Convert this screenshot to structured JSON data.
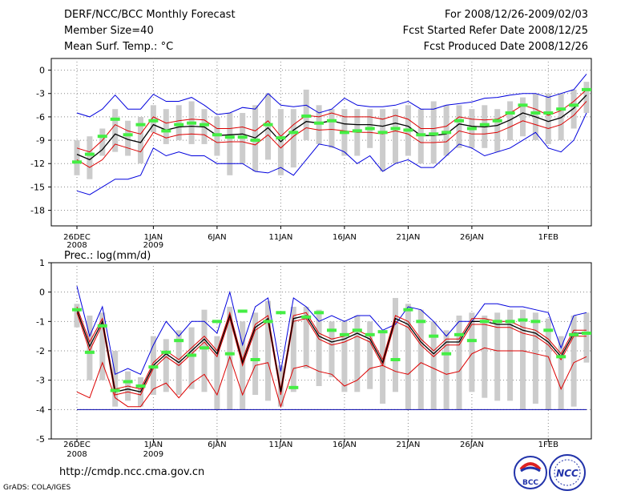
{
  "header": {
    "title": "DERF/NCC/BCC Monthly Forecast",
    "member_size": "Member Size=40",
    "variable": "Mean Surf. Temp.: °C",
    "period": "For 2008/12/26-2009/02/03",
    "fcst_started": "Fcst Started Refer Date 2008/12/25",
    "fcst_produced": "Fcst Produced Date 2008/12/26"
  },
  "footer": {
    "url": "http://cmdp.ncc.cma.gov.cn",
    "credit": "GrADS: COLA/IGES",
    "logo_bcc": "BCC",
    "logo_ncc": "NCC"
  },
  "chart_data": [
    {
      "id": "temperature",
      "type": "line",
      "title": "Mean Surf. Temp.: °C",
      "ylim": [
        -20,
        1.5
      ],
      "yticks": [
        0,
        -3,
        -6,
        -9,
        -12,
        -15,
        -18
      ],
      "ytick_labels": [
        "0",
        "-3",
        "-6",
        "-9",
        "-12",
        "-15",
        "-18"
      ],
      "x_days": 40,
      "xticks": [
        {
          "day": 0,
          "label": "26DEC",
          "sub": "2008"
        },
        {
          "day": 6,
          "label": "1JAN",
          "sub": "2009"
        },
        {
          "day": 11,
          "label": "6JAN",
          "sub": ""
        },
        {
          "day": 16,
          "label": "11JAN",
          "sub": ""
        },
        {
          "day": 21,
          "label": "16JAN",
          "sub": ""
        },
        {
          "day": 26,
          "label": "21JAN",
          "sub": ""
        },
        {
          "day": 31,
          "label": "26JAN",
          "sub": ""
        },
        {
          "day": 37,
          "label": "1FEB",
          "sub": ""
        }
      ],
      "series": [
        {
          "name": "max",
          "color": "#0000dd",
          "values": [
            -5.5,
            -6,
            -5,
            -3.2,
            -5,
            -5,
            -3.1,
            -4,
            -4,
            -3.5,
            -4.5,
            -5.7,
            -5.5,
            -4.8,
            -5,
            -3,
            -4.5,
            -4.7,
            -4.5,
            -5.5,
            -5,
            -3.6,
            -4.5,
            -4.7,
            -4.7,
            -4.5,
            -4,
            -5,
            -5,
            -4.5,
            -4.3,
            -4.1,
            -3.6,
            -3.5,
            -3.2,
            -3,
            -3,
            -3.5,
            -3,
            -2.5,
            -0.5
          ]
        },
        {
          "name": "min",
          "color": "#0000dd",
          "values": [
            -15.5,
            -16,
            -15,
            -14,
            -14,
            -13.5,
            -10,
            -11,
            -10.5,
            -11,
            -11,
            -12,
            -12,
            -12,
            -13,
            -13.2,
            -12.5,
            -13.5,
            -11.5,
            -9.5,
            -9.8,
            -10.5,
            -12,
            -11,
            -13,
            -12,
            -11.5,
            -12.5,
            -12.5,
            -11,
            -9.5,
            -10,
            -11,
            -10.5,
            -10,
            -9,
            -8,
            -10,
            -10.5,
            -9,
            -5.5
          ]
        },
        {
          "name": "upper",
          "color": "#dd0000",
          "values": [
            -10,
            -10.5,
            -9,
            -7,
            -7.8,
            -8.2,
            -6,
            -6.8,
            -6.5,
            -6.3,
            -6.4,
            -7.5,
            -7.5,
            -7.3,
            -7.8,
            -6.5,
            -8.5,
            -7,
            -5.8,
            -6,
            -5.5,
            -6,
            -6,
            -6,
            -6.3,
            -5.8,
            -6.3,
            -7.5,
            -7.5,
            -7.2,
            -6,
            -6.3,
            -6.4,
            -6.3,
            -5.5,
            -4.5,
            -5,
            -5.8,
            -5.2,
            -4,
            -2.5
          ]
        },
        {
          "name": "lower",
          "color": "#dd0000",
          "values": [
            -11.5,
            -12.5,
            -11.5,
            -9.5,
            -10,
            -10.5,
            -8,
            -8.7,
            -8.3,
            -8.2,
            -8.3,
            -9.3,
            -9.2,
            -9.2,
            -9.6,
            -8.3,
            -10,
            -8.5,
            -7.4,
            -7.7,
            -7.6,
            -7.8,
            -8,
            -8,
            -8.2,
            -7.8,
            -8.2,
            -9.3,
            -9.3,
            -9.2,
            -7.8,
            -8.2,
            -8.2,
            -8,
            -7.3,
            -6.5,
            -7,
            -7.5,
            -7,
            -5.8,
            -4
          ]
        },
        {
          "name": "mean",
          "color": "#000000",
          "values": [
            -10.8,
            -11.5,
            -10.2,
            -8.2,
            -8.9,
            -9.3,
            -7,
            -7.7,
            -7.3,
            -7.2,
            -7.3,
            -8.4,
            -8.3,
            -8.2,
            -8.7,
            -7.4,
            -9.2,
            -7.7,
            -6.6,
            -6.8,
            -6.5,
            -6.9,
            -7,
            -7,
            -7.2,
            -6.8,
            -7.2,
            -8.4,
            -8.4,
            -8.2,
            -6.9,
            -7.2,
            -7.3,
            -7.1,
            -6.4,
            -5.5,
            -6,
            -6.6,
            -6.1,
            -4.9,
            -3.2
          ]
        }
      ],
      "boxes": [
        [
          -9,
          -13.5
        ],
        [
          -8.5,
          -14
        ],
        [
          -7.5,
          -11
        ],
        [
          -5,
          -10.5
        ],
        [
          -6.5,
          -11
        ],
        [
          -6,
          -12
        ],
        [
          -4.5,
          -8
        ],
        [
          -5,
          -9.5
        ],
        [
          -4.5,
          -9
        ],
        [
          -4,
          -9.5
        ],
        [
          -5,
          -9.5
        ],
        [
          -6,
          -11
        ],
        [
          -5.5,
          -13.5
        ],
        [
          -5.5,
          -12
        ],
        [
          -4.5,
          -13
        ],
        [
          -3,
          -11.5
        ],
        [
          -5,
          -13.5
        ],
        [
          -5,
          -12.5
        ],
        [
          -2.5,
          -9
        ],
        [
          -4.5,
          -9.5
        ],
        [
          -5,
          -10
        ],
        [
          -5,
          -11
        ],
        [
          -5,
          -11
        ],
        [
          -5,
          -10
        ],
        [
          -5,
          -13
        ],
        [
          -5,
          -12
        ],
        [
          -4.5,
          -11
        ],
        [
          -5,
          -12
        ],
        [
          -4,
          -12
        ],
        [
          -4.5,
          -11
        ],
        [
          -4.5,
          -10
        ],
        [
          -5,
          -10
        ],
        [
          -4.5,
          -10
        ],
        [
          -5,
          -10.5
        ],
        [
          -4,
          -9
        ],
        [
          -3.5,
          -8.5
        ],
        [
          -3,
          -9
        ],
        [
          -3,
          -9.5
        ],
        [
          -3,
          -9
        ],
        [
          -2.5,
          -7.5
        ],
        [
          -1.5,
          -5.5
        ]
      ],
      "markers": [
        -11.8,
        -10.8,
        -8.5,
        -6.3,
        -8.3,
        -7,
        -6.5,
        -7.8,
        -7,
        -6.8,
        -7,
        -8.3,
        -8.6,
        -8.6,
        -9,
        -7,
        -8.7,
        -8,
        -5.9,
        -6.8,
        -6.5,
        -8,
        -7.8,
        -7.5,
        -8,
        -7.5,
        -7.7,
        -8.3,
        -8.2,
        -8,
        -6.5,
        -7.5,
        -7,
        -6.5,
        -5.5,
        -4.5,
        -5.5,
        -5.5,
        -5,
        -4.5,
        -2.5
      ]
    },
    {
      "id": "precipitation",
      "type": "line",
      "title": "Prec.: log(mm/d)",
      "ylim": [
        -5,
        1
      ],
      "yticks": [
        1,
        0,
        -1,
        -2,
        -3,
        -4,
        -5
      ],
      "ytick_labels": [
        "1",
        "0",
        "-1",
        "-2",
        "-3",
        "-4",
        "-5"
      ],
      "x_days": 40,
      "xticks": [
        {
          "day": 0,
          "label": "26DEC",
          "sub": "2008"
        },
        {
          "day": 6,
          "label": "1JAN",
          "sub": "2009"
        },
        {
          "day": 11,
          "label": "6JAN",
          "sub": ""
        },
        {
          "day": 16,
          "label": "11JAN",
          "sub": ""
        },
        {
          "day": 21,
          "label": "16JAN",
          "sub": ""
        },
        {
          "day": 26,
          "label": "21JAN",
          "sub": ""
        },
        {
          "day": 31,
          "label": "26JAN",
          "sub": ""
        },
        {
          "day": 37,
          "label": "1FEB",
          "sub": ""
        }
      ],
      "series": [
        {
          "name": "max",
          "color": "#0000dd",
          "values": [
            0.2,
            -1.5,
            -0.5,
            -2.8,
            -2.6,
            -2.8,
            -1.8,
            -1,
            -1.5,
            -1,
            -1,
            -1.4,
            0,
            -1.8,
            -0.5,
            -0.2,
            -2.7,
            -0.2,
            -0.5,
            -1,
            -0.8,
            -1,
            -0.8,
            -0.8,
            -1.3,
            -1.1,
            -0.5,
            -0.6,
            -1,
            -1.5,
            -1,
            -1,
            -0.4,
            -0.4,
            -0.5,
            -0.5,
            -0.6,
            -0.7,
            -1.9,
            -0.8,
            -0.7
          ]
        },
        {
          "name": "min",
          "color": "#dd0000",
          "values": [
            -3.4,
            -3.6,
            -2.4,
            -3.6,
            -3.9,
            -3.9,
            -3.3,
            -3.1,
            -3.6,
            -3.1,
            -2.8,
            -3.5,
            -2.2,
            -3.5,
            -2.5,
            -2.4,
            -3.9,
            -2.6,
            -2.5,
            -2.7,
            -2.8,
            -3.2,
            -3,
            -2.6,
            -2.5,
            -2.7,
            -2.8,
            -2.4,
            -2.6,
            -2.8,
            -2.7,
            -2.1,
            -1.9,
            -2,
            -2,
            -2,
            -2.1,
            -2.2,
            -3.3,
            -2.4,
            -2.2
          ]
        },
        {
          "name": "lower",
          "color": "#dd0000",
          "values": [
            -0.7,
            -2,
            -1.1,
            -3.5,
            -3.4,
            -3.5,
            -2.6,
            -2.2,
            -2.5,
            -2.1,
            -1.7,
            -2.2,
            -0.9,
            -2.5,
            -1.3,
            -1,
            -3.5,
            -1,
            -0.9,
            -1.6,
            -1.8,
            -1.7,
            -1.5,
            -1.7,
            -2.5,
            -1,
            -1.2,
            -1.8,
            -2.2,
            -1.8,
            -1.8,
            -1.1,
            -1.1,
            -1.2,
            -1.2,
            -1.4,
            -1.5,
            -1.8,
            -2.3,
            -1.5,
            -1.5
          ]
        },
        {
          "name": "upper",
          "color": "#dd0000",
          "values": [
            -0.5,
            -1.7,
            -0.9,
            -3.3,
            -3.2,
            -3.3,
            -2.4,
            -2,
            -2.3,
            -1.9,
            -1.5,
            -2,
            -0.7,
            -2.3,
            -1.1,
            -0.8,
            -3.3,
            -0.8,
            -0.7,
            -1.4,
            -1.6,
            -1.5,
            -1.3,
            -1.5,
            -2.3,
            -0.8,
            -1,
            -1.6,
            -2,
            -1.6,
            -1.6,
            -0.9,
            -0.9,
            -1,
            -1,
            -1.2,
            -1.3,
            -1.6,
            -2.1,
            -1.3,
            -1.3
          ]
        },
        {
          "name": "mean",
          "color": "#000000",
          "values": [
            -0.6,
            -1.85,
            -1,
            -3.4,
            -3.3,
            -3.4,
            -2.5,
            -2.1,
            -2.4,
            -2,
            -1.6,
            -2.1,
            -0.8,
            -2.4,
            -1.2,
            -0.9,
            -3.4,
            -0.9,
            -0.8,
            -1.5,
            -1.7,
            -1.6,
            -1.4,
            -1.6,
            -2.4,
            -0.9,
            -1.1,
            -1.7,
            -2.1,
            -1.7,
            -1.7,
            -1,
            -1,
            -1.1,
            -1.1,
            -1.3,
            -1.4,
            -1.7,
            -2.2,
            -1.4,
            -1.4
          ]
        }
      ],
      "floor": -4,
      "boxes": [
        [
          -0.4,
          -1.2
        ],
        [
          -0.8,
          -3
        ],
        [
          -0.7,
          -3
        ],
        [
          -2,
          -3.9
        ],
        [
          -2.7,
          -3.7
        ],
        [
          -2.9,
          -3.9
        ],
        [
          -1.5,
          -3.5
        ],
        [
          -1.6,
          -3.4
        ],
        [
          -1.3,
          -3.5
        ],
        [
          -1.2,
          -3.3
        ],
        [
          -0.6,
          -3.4
        ],
        [
          -1.5,
          -4
        ],
        [
          -0.5,
          -4
        ],
        [
          -1,
          -4
        ],
        [
          -0.7,
          -3.5
        ],
        [
          -0.3,
          -3.7
        ],
        [
          -2.5,
          -3.9
        ],
        [
          -0.5,
          -3.4
        ],
        [
          -0.5,
          -2.6
        ],
        [
          -0.6,
          -3.2
        ],
        [
          -1,
          -2.9
        ],
        [
          -1,
          -3.4
        ],
        [
          -0.8,
          -3.4
        ],
        [
          -1,
          -3.3
        ],
        [
          -1.4,
          -3.8
        ],
        [
          -0.2,
          -3.4
        ],
        [
          -0.4,
          -4
        ],
        [
          -0.6,
          -4
        ],
        [
          -1,
          -4
        ],
        [
          -1.3,
          -4
        ],
        [
          -0.8,
          -4
        ],
        [
          -0.7,
          -3.4
        ],
        [
          -0.8,
          -3.6
        ],
        [
          -0.7,
          -3.7
        ],
        [
          -0.6,
          -3.7
        ],
        [
          -0.6,
          -4
        ],
        [
          -0.7,
          -3.8
        ],
        [
          -0.9,
          -4
        ],
        [
          -1.5,
          -4
        ],
        [
          -0.8,
          -3.9
        ],
        [
          -0.7,
          -2.4
        ]
      ],
      "markers": [
        -0.6,
        -2.05,
        -1.15,
        -3.35,
        -3.05,
        -3.2,
        -2.55,
        -2.05,
        -1.65,
        -2.15,
        -1.9,
        -1.0,
        -2.1,
        -0.65,
        -2.3,
        -1.0,
        -0.7,
        -3.25,
        -0.85,
        -0.7,
        -1.3,
        -1.45,
        -1.3,
        -1.45,
        -1.35,
        -2.3,
        -0.6,
        -1.0,
        -1.5,
        -2.1,
        -1.45,
        -1.65,
        -1.0,
        -1.0,
        -1.0,
        -0.95,
        -1.0,
        -1.3,
        -2.2,
        -1.45,
        -1.4
      ]
    }
  ]
}
